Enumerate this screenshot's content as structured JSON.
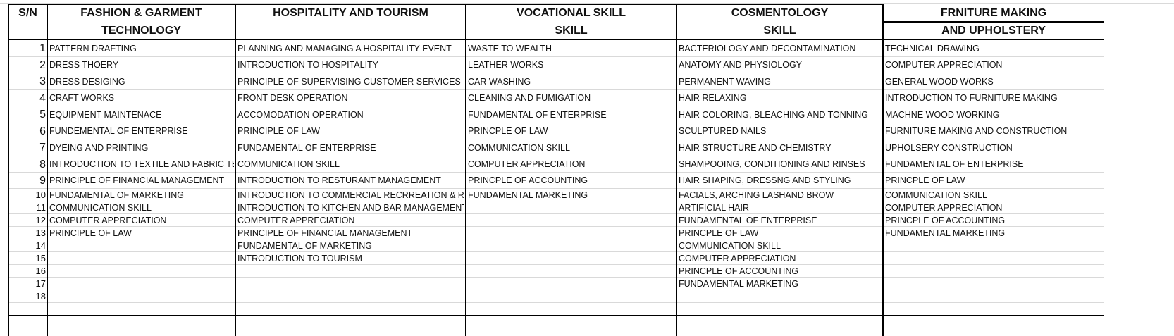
{
  "headers": {
    "sn": "S/N",
    "fashion_line1": "FASHION & GARMENT",
    "fashion_line2": "TECHNOLOGY",
    "hospitality_line1": "HOSPITALITY AND TOURISM",
    "hospitality_line2": "",
    "vocational_line1": "VOCATIONAL SKILL",
    "vocational_line2": "SKILL",
    "cosmetology_line1": "COSMENTOLOGY",
    "cosmetology_line2": "SKILL",
    "furniture_line1": "FRNITURE  MAKING",
    "furniture_line2": "AND UPHOLSTERY"
  },
  "serial_numbers": [
    "1",
    "2",
    "3",
    "4",
    "5",
    "6",
    "7",
    "8",
    "9",
    "10",
    "11",
    "12",
    "13",
    "14",
    "15",
    "16",
    "17",
    "18"
  ],
  "columns": {
    "fashion": [
      "PATTERN DRAFTING",
      "DRESS THOERY",
      "DRESS DESIGING",
      "CRAFT WORKS",
      "EQUIPMENT MAINTENACE",
      "FUNDEMENTAL OF ENTERPRISE",
      "DYEING AND PRINTING",
      "INTRODUCTION TO TEXTILE AND FABRIC TECH.",
      "PRINCIPLE OF FINANCIAL MANAGEMENT",
      "FUNDAMENTAL OF MARKETING",
      "COMMUNICATION SKILL",
      "COMPUTER APPRECIATION",
      "PRINCIPLE OF LAW"
    ],
    "hospitality": [
      "PLANNING AND MANAGING A HOSPITALITY EVENT",
      "INTRODUCTION TO HOSPITALITY",
      "PRINCIPLE OF SUPERVISING CUSTOMER SERVICES",
      "FRONT DESK OPERATION",
      "ACCOMODATION OPERATION",
      "PRINCIPLE OF LAW",
      "FUNDAMENTAL OF ENTERPRISE",
      "COMMUNICATION SKILL",
      "INTRODUCTION TO RESTURANT MANAGEMENT",
      "INTRODUCTION TO COMMERCIAL RECRREATION & RESORT",
      "INTRODUCTION TO KITCHEN AND BAR MANAGEMENT",
      "COMPUTER APPRECIATION",
      "PRINCIPLE OF FINANCIAL MANAGEMENT",
      "FUNDAMENTAL OF MARKETING",
      "INTRODUCTION TO TOURISM"
    ],
    "vocational": [
      "WASTE  TO WEALTH",
      "LEATHER WORKS",
      "CAR WASHING",
      "CLEANING AND FUMIGATION",
      "FUNDAMENTAL OF ENTERPRISE",
      "PRINCPLE OF LAW",
      "COMMUNICATION  SKILL",
      "COMPUTER APPRECIATION",
      "PRINCPLE OF ACCOUNTING",
      "FUNDAMENTAL MARKETING"
    ],
    "cosmetology": [
      "BACTERIOLOGY AND DECONTAMINATION",
      "ANATOMY AND PHYSIOLOGY",
      "PERMANENT WAVING",
      "HAIR RELAXING",
      "HAIR COLORING, BLEACHING AND TONNING",
      "SCULPTURED NAILS",
      "HAIR STRUCTURE AND CHEMISTRY",
      "SHAMPOOING, CONDITIONING AND RINSES",
      "HAIR SHAPING, DRESSNG AND STYLING",
      "FACIALS, ARCHING LASHAND BROW",
      "ARTIFICIAL HAIR",
      "FUNDAMENTAL OF ENTERPRISE",
      "PRINCPLE OF LAW",
      "COMMUNICATION  SKILL",
      "COMPUTER APPRECIATION",
      "PRINCPLE OF ACCOUNTING",
      "FUNDAMENTAL MARKETING"
    ],
    "furniture": [
      "TECHNICAL  DRAWING",
      "COMPUTER APPRECIATION",
      "GENERAL WOOD WORKS",
      "INTRODUCTION TO FURNITURE MAKING",
      "MACHNE WOOD WORKING",
      "FURNITURE MAKING  AND CONSTRUCTION",
      "UPHOLSERY CONSTRUCTION",
      "FUNDAMENTAL OF ENTERPRISE",
      "PRINCPLE OF LAW",
      "COMMUNICATION  SKILL",
      "COMPUTER APPRECIATION",
      "PRINCPLE OF ACCOUNTING",
      "FUNDAMENTAL MARKETING"
    ]
  }
}
